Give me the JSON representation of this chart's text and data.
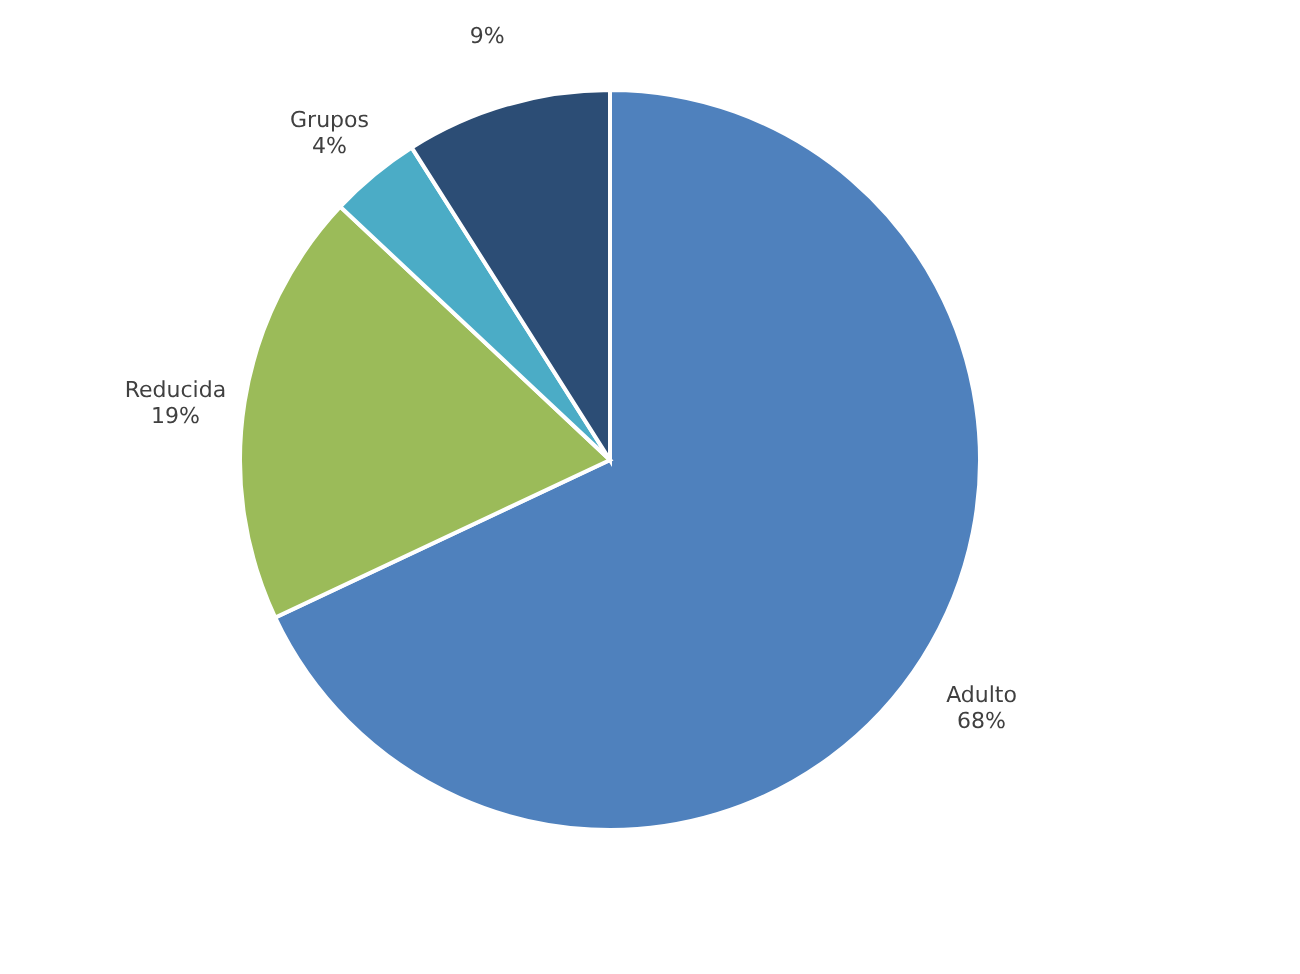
{
  "chart_data": {
    "type": "pie",
    "categories": [
      "Adulto",
      "Reducida",
      "Grupos",
      null
    ],
    "values": [
      68,
      19,
      4,
      9
    ],
    "value_labels": [
      "68%",
      "19%",
      "4%",
      "9%"
    ],
    "colors": [
      "#4f81bd",
      "#9bbb59",
      "#4bacc6",
      "#2c4d75"
    ],
    "legend": false
  }
}
